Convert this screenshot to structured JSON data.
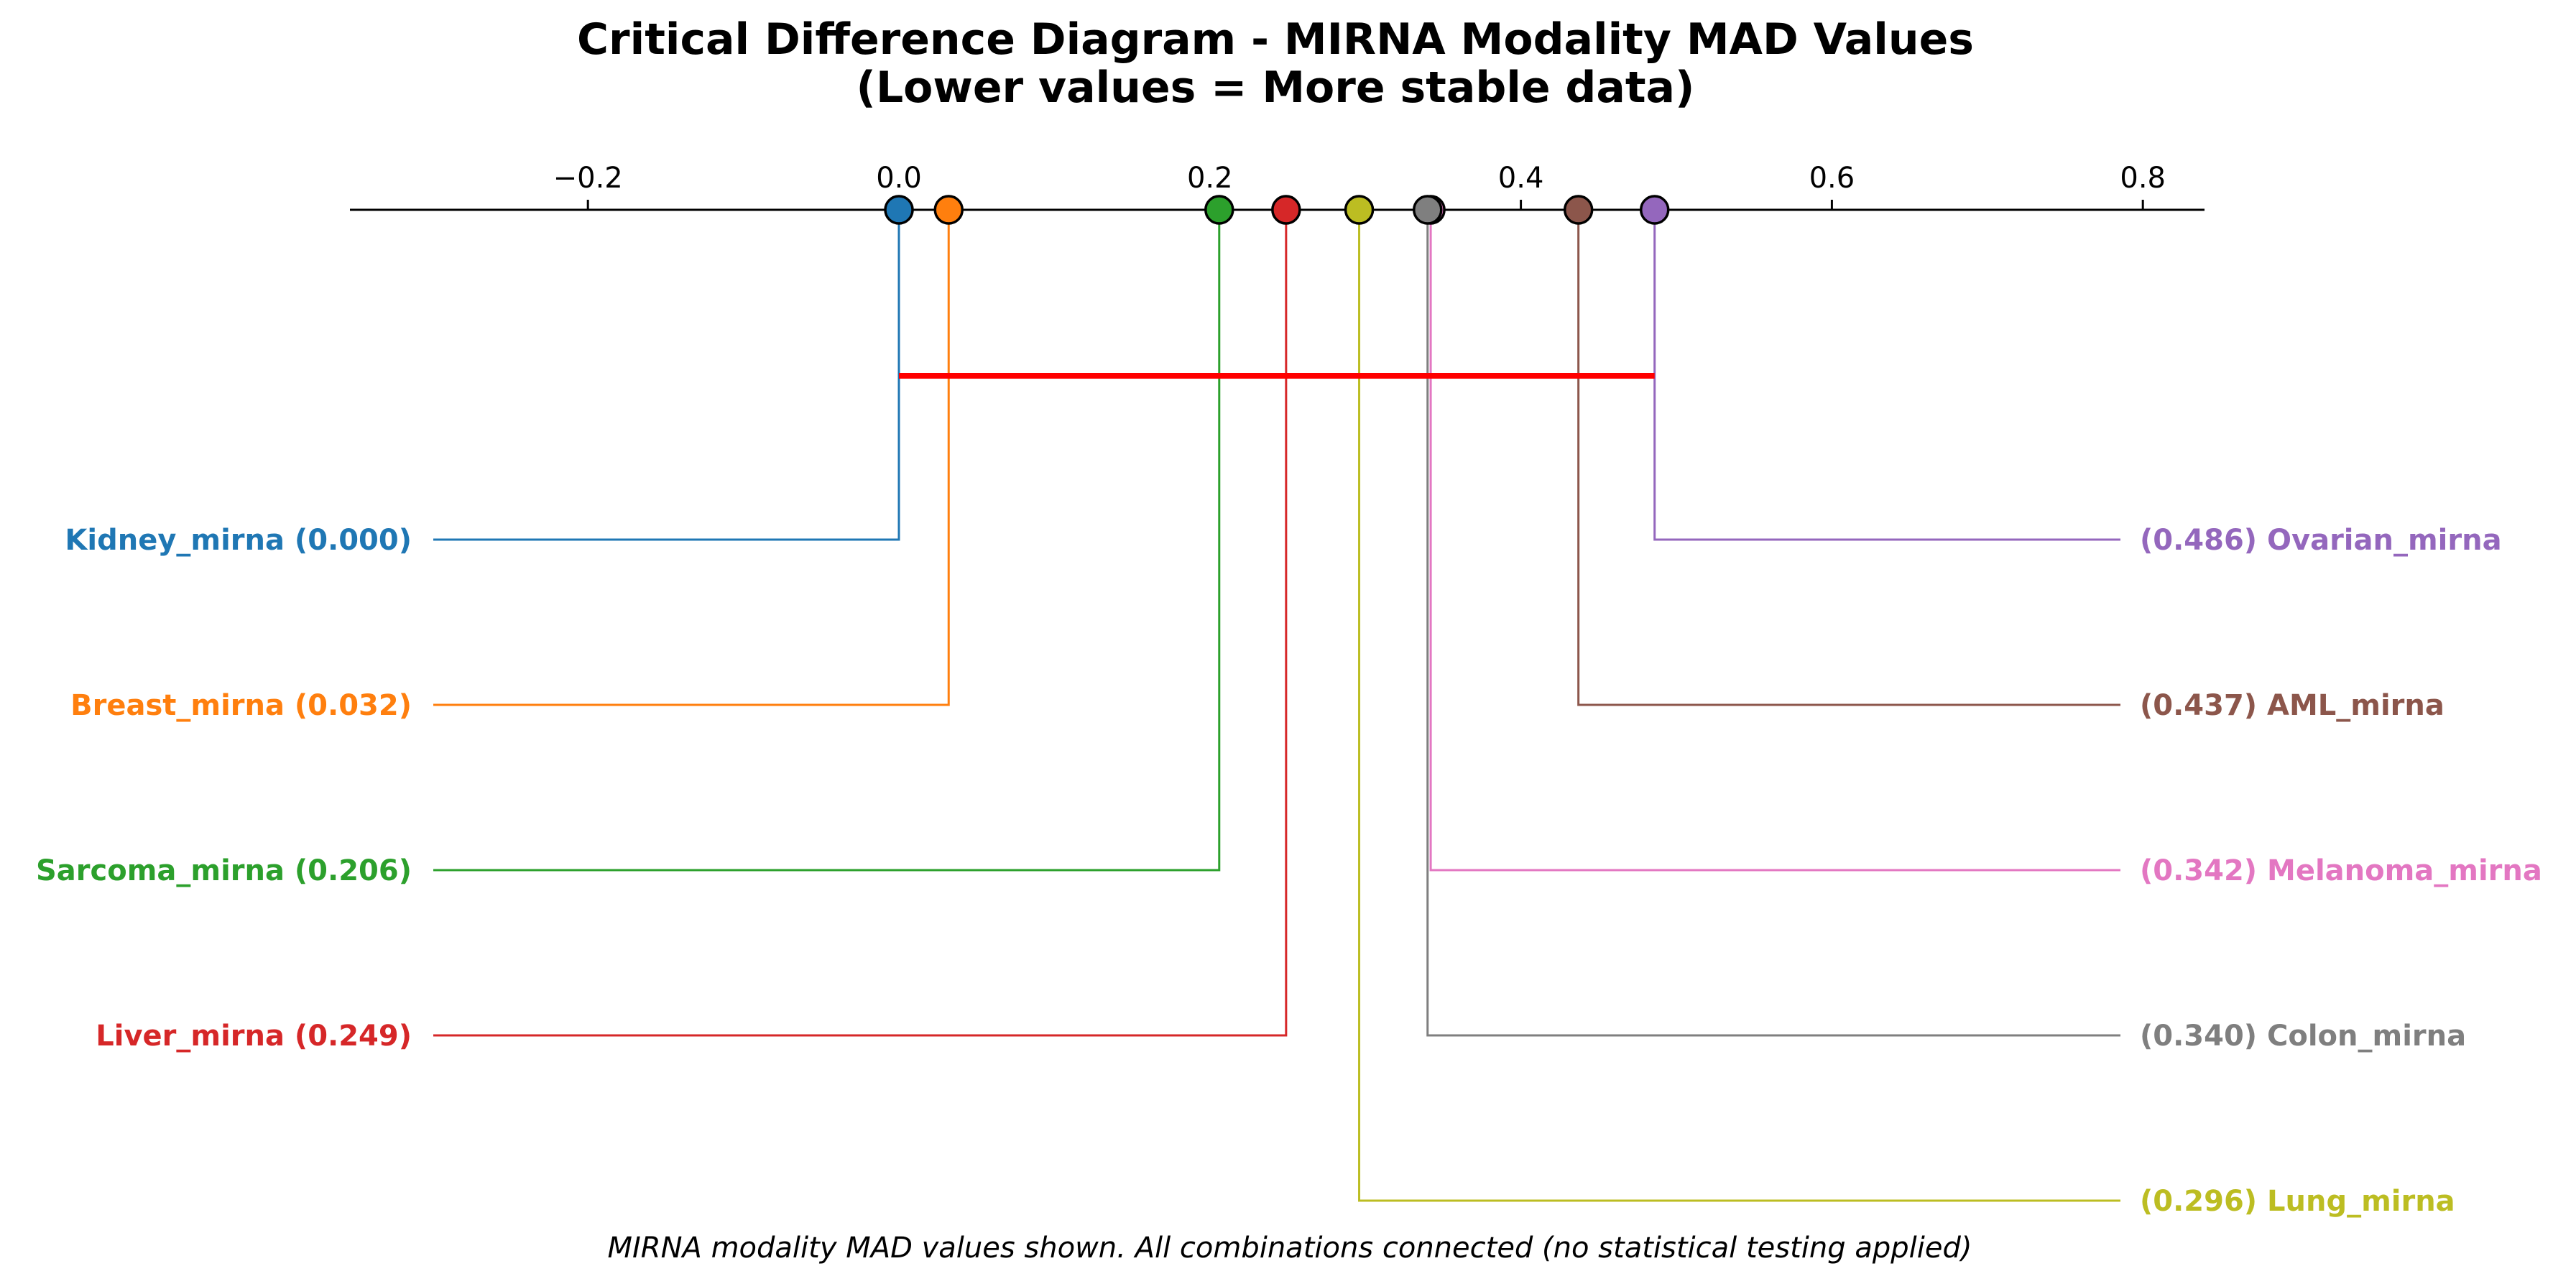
{
  "chart_data": {
    "type": "critical-difference-diagram",
    "title_line1": "Critical Difference Diagram - MIRNA Modality MAD Values",
    "title_line2": "(Lower values = More stable data)",
    "footnote": "MIRNA modality MAD values shown. All combinations connected (no statistical testing applied)",
    "xlim": [
      -0.355,
      0.84
    ],
    "ticks": [
      -0.2,
      0.0,
      0.2,
      0.4,
      0.6,
      0.8
    ],
    "tick_labels": [
      "−0.2",
      "0.0",
      "0.2",
      "0.4",
      "0.6",
      "0.8"
    ],
    "grid": false,
    "clique_color": "#ff0000",
    "cliques": [
      {
        "from": 0.0,
        "to": 0.486
      }
    ],
    "left_items": [
      {
        "name": "Kidney_mirna",
        "value": 0.0,
        "value_label": "0.000",
        "color": "#1f77b4",
        "marker_value": 0.0
      },
      {
        "name": "Breast_mirna",
        "value": 0.032,
        "value_label": "0.032",
        "color": "#ff7f0e",
        "marker_value": 0.032
      },
      {
        "name": "Sarcoma_mirna",
        "value": 0.206,
        "value_label": "0.206",
        "color": "#2ca02c",
        "marker_value": 0.206
      },
      {
        "name": "Liver_mirna",
        "value": 0.249,
        "value_label": "0.249",
        "color": "#d62728",
        "marker_value": 0.249
      }
    ],
    "right_items": [
      {
        "name": "Ovarian_mirna",
        "value": 0.486,
        "value_label": "0.486",
        "color": "#9467bd",
        "marker_value": 0.486
      },
      {
        "name": "AML_mirna",
        "value": 0.437,
        "value_label": "0.437",
        "color": "#8c564b",
        "marker_value": 0.437
      },
      {
        "name": "Melanoma_mirna",
        "value": 0.342,
        "value_label": "0.342",
        "color": "#e377c2",
        "marker_value": 0.342
      },
      {
        "name": "Colon_mirna",
        "value": 0.34,
        "value_label": "0.340",
        "color": "#7f7f7f",
        "marker_value": 0.34
      },
      {
        "name": "Lung_mirna",
        "value": 0.296,
        "value_label": "0.296",
        "color": "#bcbd22",
        "marker_value": 0.296
      }
    ]
  }
}
